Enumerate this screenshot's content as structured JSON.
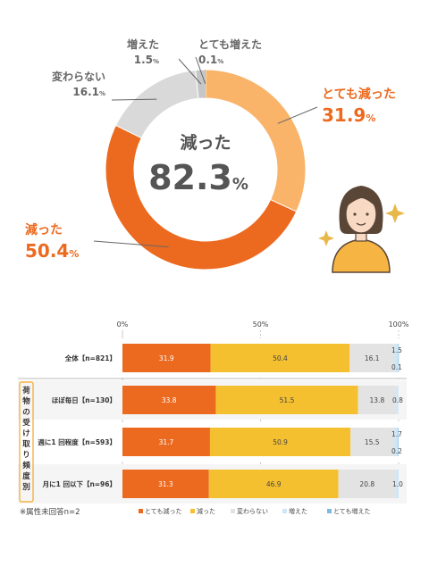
{
  "chart_data": [
    {
      "type": "pie",
      "variant": "donut",
      "center_text": {
        "line1": "減った",
        "value": "82.3",
        "unit": "%"
      },
      "slices": [
        {
          "label": "とても減った",
          "value": 31.9,
          "color": "#f9b46a"
        },
        {
          "label": "減った",
          "value": 50.4,
          "color": "#ec6a1f"
        },
        {
          "label": "変わらない",
          "value": 16.1,
          "color": "#d9d9d9"
        },
        {
          "label": "増えた",
          "value": 1.5,
          "color": "#c6c6c6"
        },
        {
          "label": "とても増えた",
          "value": 0.1,
          "color": "#8a8a8a"
        }
      ],
      "slice_value_suffix": "%"
    },
    {
      "type": "bar",
      "orientation": "horizontal",
      "stacked": true,
      "x_ticks": [
        "0%",
        "50%",
        "100%"
      ],
      "xlim": [
        0,
        100
      ],
      "categories": [
        "全体【n=821】",
        "ほぼ毎日【n=130】",
        "週に1 回程度【n=593】",
        "月に1 回以下【n=96】"
      ],
      "group_label": "荷物の受け取り頻度別",
      "series": [
        {
          "name": "とても減った",
          "color": "#ec6a1f",
          "values": [
            31.9,
            33.8,
            31.7,
            31.3
          ]
        },
        {
          "name": "減った",
          "color": "#f5c030",
          "values": [
            50.4,
            51.5,
            50.9,
            46.9
          ]
        },
        {
          "name": "変わらない",
          "color": "#e3e3e3",
          "values": [
            16.1,
            13.8,
            15.5,
            20.8
          ]
        },
        {
          "name": "増えた",
          "color": "#cfe6f5",
          "values": [
            1.5,
            0.8,
            1.7,
            1.0
          ]
        },
        {
          "name": "とても増えた",
          "color": "#7fb8e0",
          "values": [
            0.1,
            0.0,
            0.2,
            0.0
          ]
        }
      ],
      "value_labels": [
        [
          "31.9",
          "50.4",
          "16.1",
          "1.5",
          "0.1"
        ],
        [
          "33.8",
          "51.5",
          "13.8",
          "0.8",
          ""
        ],
        [
          "31.7",
          "50.9",
          "15.5",
          "1.7",
          "0.2"
        ],
        [
          "31.3",
          "46.9",
          "20.8",
          "1.0",
          ""
        ]
      ],
      "footnote": "※属性未回答n=2"
    }
  ]
}
